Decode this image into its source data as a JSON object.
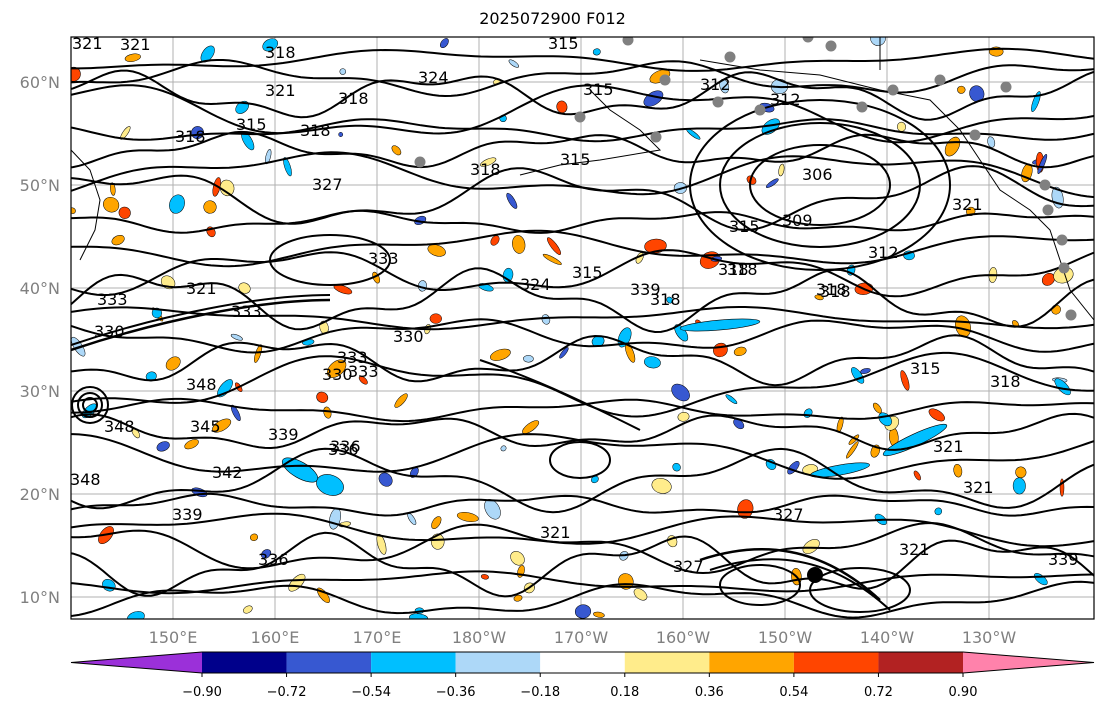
{
  "title": "2025072900 F012",
  "map": {
    "lat_ticks": [
      "60°N",
      "50°N",
      "40°N",
      "30°N",
      "20°N",
      "10°N"
    ],
    "lon_ticks": [
      "150°E",
      "160°E",
      "170°E",
      "180°W",
      "170°W",
      "160°W",
      "150°W",
      "140°W",
      "130°W"
    ],
    "contour_labels": [
      "321",
      "321",
      "318",
      "315",
      "324",
      "321",
      "318",
      "315",
      "318",
      "318",
      "327",
      "318",
      "315",
      "312",
      "306",
      "315",
      "309",
      "315",
      "318",
      "312",
      "321",
      "324",
      "315",
      "318",
      "333",
      "333",
      "330",
      "333",
      "321",
      "330",
      "333",
      "330",
      "348",
      "345",
      "339",
      "342",
      "339",
      "336",
      "348",
      "339",
      "336",
      "321",
      "327",
      "321",
      "315",
      "318",
      "321",
      "321",
      "327",
      "339",
      "336",
      "348",
      "333",
      "318",
      "318",
      "318",
      "312"
    ],
    "colors": {
      "contour": "#000000",
      "coastline": "#000000",
      "grid": "#b0b0b0",
      "station_marker": "#808080"
    }
  },
  "colorbar": {
    "colors": [
      "#9b30d9",
      "#00008b",
      "#3758d1",
      "#00bfff",
      "#add8f8",
      "#ffffff",
      "#ffec8b",
      "#ffa500",
      "#ff4500",
      "#b22222",
      "#ff82ab"
    ],
    "tick_labels": [
      "−0.90",
      "−0.72",
      "−0.54",
      "−0.36",
      "−0.18",
      "0.18",
      "0.36",
      "0.54",
      "0.72",
      "0.90"
    ]
  }
}
